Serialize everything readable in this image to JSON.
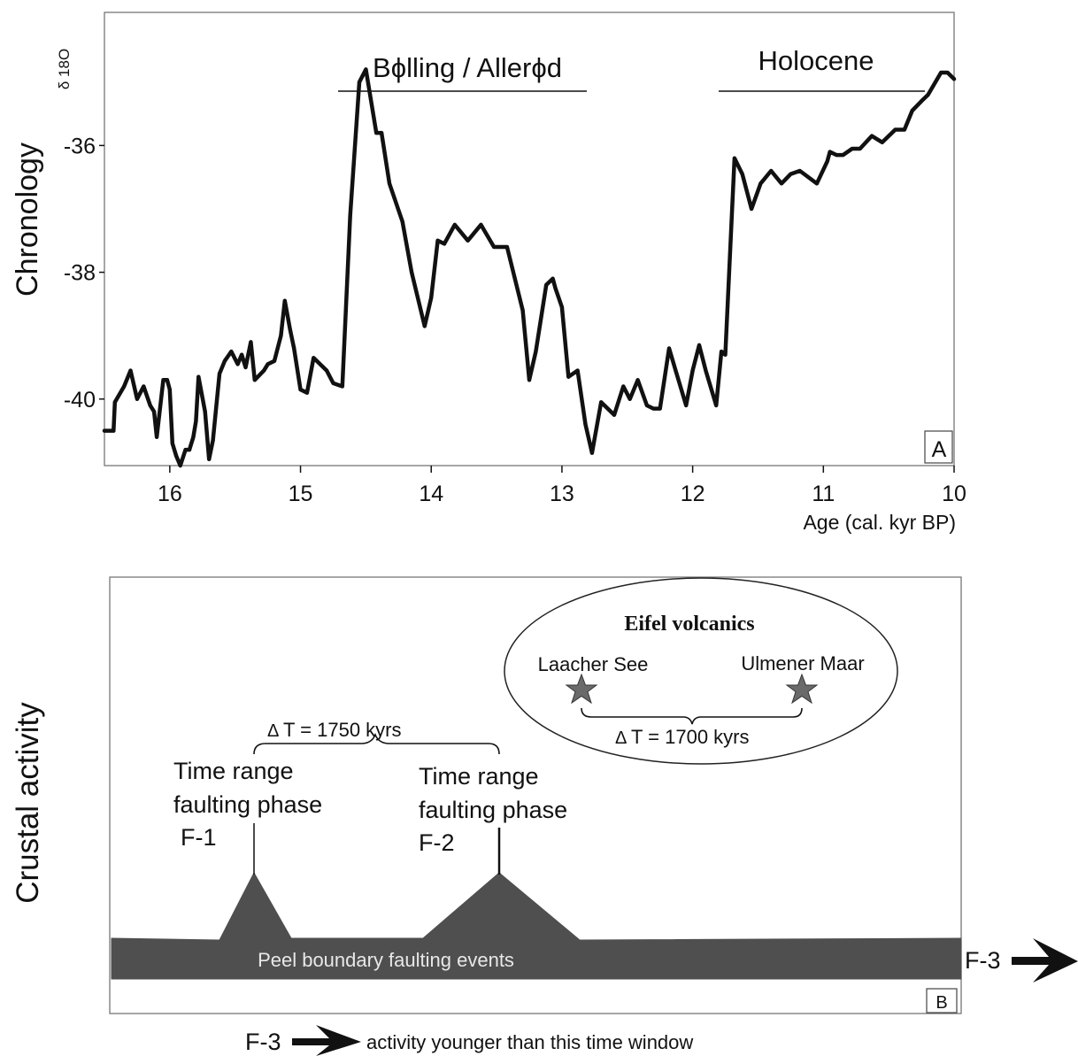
{
  "chart_data": [
    {
      "type": "line",
      "panel": "A",
      "ylabel": "Chronology",
      "series_label": "δ 18O",
      "xlabel": "Age (cal. kyr BP)",
      "xlim": [
        16.5,
        10.0
      ],
      "ylim": [
        -41.05,
        -33.9
      ],
      "x_ticks": [
        "16",
        "15",
        "14",
        "13",
        "12",
        "11",
        "10"
      ],
      "y_ticks": [
        "-36",
        "-38",
        "-40"
      ],
      "annotations": [
        "Bϕlling / Allerϕd",
        "Holocene"
      ],
      "series": [
        {
          "x": [
            16.5,
            16.43,
            16.42,
            16.35,
            16.3,
            16.25,
            16.2,
            16.15,
            16.12,
            16.1,
            16.05,
            16.02,
            16.0,
            15.98,
            15.95,
            15.92,
            15.88,
            15.85,
            15.82,
            15.8,
            15.78,
            15.73,
            15.7,
            15.67,
            15.62,
            15.58,
            15.53,
            15.48,
            15.45,
            15.42,
            15.38,
            15.35,
            15.28,
            15.25,
            15.2,
            15.15,
            15.12,
            15.08,
            15.05,
            15.0,
            14.95,
            14.9,
            14.8,
            14.75,
            14.68,
            14.62,
            14.55,
            14.5,
            14.42,
            14.38,
            14.32,
            14.22,
            14.15,
            14.05,
            14.0,
            13.95,
            13.9,
            13.82,
            13.72,
            13.62,
            13.52,
            13.42,
            13.3,
            13.25,
            13.2,
            13.12,
            13.07,
            13.05,
            13.0,
            12.95,
            12.88,
            12.82,
            12.77,
            12.7,
            12.6,
            12.53,
            12.48,
            12.42,
            12.35,
            12.3,
            12.25,
            12.18,
            12.13,
            12.05,
            12.0,
            11.95,
            11.9,
            11.82,
            11.78,
            11.75,
            11.68,
            11.62,
            11.55,
            11.48,
            11.4,
            11.32,
            11.25,
            11.18,
            11.05,
            10.97,
            10.95,
            10.9,
            10.85,
            10.78,
            10.72,
            10.63,
            10.55,
            10.45,
            10.38,
            10.32,
            10.25,
            10.2,
            10.1,
            10.05,
            10.0
          ],
          "y": [
            -40.5,
            -40.5,
            -40.05,
            -39.8,
            -39.55,
            -40.0,
            -39.8,
            -40.1,
            -40.2,
            -40.6,
            -39.7,
            -39.7,
            -39.85,
            -40.7,
            -40.9,
            -41.05,
            -40.8,
            -40.8,
            -40.6,
            -40.35,
            -39.65,
            -40.2,
            -40.95,
            -40.65,
            -39.6,
            -39.4,
            -39.25,
            -39.45,
            -39.3,
            -39.5,
            -39.1,
            -39.7,
            -39.55,
            -39.45,
            -39.4,
            -39.0,
            -38.45,
            -38.9,
            -39.2,
            -39.85,
            -39.9,
            -39.35,
            -39.55,
            -39.75,
            -39.8,
            -37.1,
            -35.0,
            -34.8,
            -35.8,
            -35.8,
            -36.6,
            -37.2,
            -38.0,
            -38.85,
            -38.4,
            -37.5,
            -37.55,
            -37.25,
            -37.5,
            -37.25,
            -37.6,
            -37.6,
            -38.6,
            -39.7,
            -39.25,
            -38.2,
            -38.1,
            -38.25,
            -38.55,
            -39.65,
            -39.55,
            -40.4,
            -40.85,
            -40.05,
            -40.25,
            -39.8,
            -40.0,
            -39.7,
            -40.1,
            -40.15,
            -40.15,
            -39.2,
            -39.55,
            -40.1,
            -39.55,
            -39.15,
            -39.55,
            -40.1,
            -39.25,
            -39.3,
            -36.2,
            -36.45,
            -37.0,
            -36.6,
            -36.4,
            -36.6,
            -36.45,
            -36.4,
            -36.6,
            -36.25,
            -36.1,
            -36.15,
            -36.15,
            -36.05,
            -36.05,
            -35.85,
            -35.95,
            -35.75,
            -35.75,
            -35.45,
            -35.3,
            -35.2,
            -34.85,
            -34.85,
            -34.95
          ]
        }
      ]
    },
    {
      "type": "diagram",
      "panel": "B",
      "ylabel": "Crustal activity",
      "band_label": "Peel boundary faulting events",
      "phase1_lines": [
        "Time range",
        "faulting phase",
        "F-1"
      ],
      "phase2_lines": [
        "Time range",
        "faulting phase",
        "F-2"
      ],
      "delta_t_faulting": "T = 1750 kyrs",
      "eifel_title": "Eifel volcanics",
      "laacher_see": "Laacher See",
      "ulmener_maar": "Ulmener Maar",
      "delta_t_eifel": "T = 1700 kyrs",
      "f3_right": "F-3",
      "f3_bottom": "F-3",
      "f3_bottom_text": "activity younger than this time window"
    }
  ],
  "colors": {
    "line": "#111111",
    "band": "#4f4f4f",
    "star": "#6a6a6a",
    "band_text": "#e8e8e8"
  }
}
